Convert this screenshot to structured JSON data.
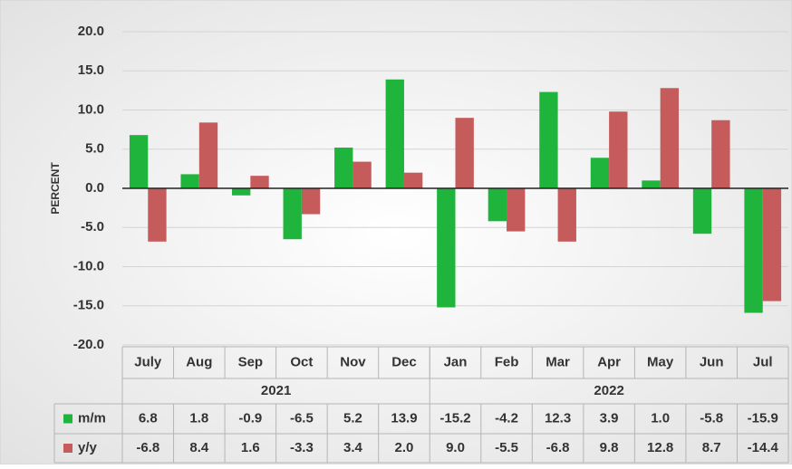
{
  "chart_data": {
    "type": "bar",
    "y_label": "PERCENT",
    "categories": [
      "July",
      "Aug",
      "Sep",
      "Oct",
      "Nov",
      "Dec",
      "Jan",
      "Feb",
      "Mar",
      "Apr",
      "May",
      "Jun",
      "Jul"
    ],
    "groups": [
      {
        "label": "2021",
        "size": 6
      },
      {
        "label": "2022",
        "size": 7
      }
    ],
    "series": [
      {
        "name": "m/m",
        "color": "#1fb53c",
        "values": [
          6.8,
          1.8,
          -0.9,
          -6.5,
          5.2,
          13.9,
          -15.2,
          -4.2,
          12.3,
          3.9,
          1.0,
          -5.8,
          -15.9
        ],
        "value_labels": [
          "6.8",
          "1.8",
          "-0.9",
          "-6.5",
          "5.2",
          "13.9",
          "-15.2",
          "-4.2",
          "12.3",
          "3.9",
          "1.0",
          "-5.8",
          "-15.9"
        ]
      },
      {
        "name": "y/y",
        "color": "#c65b5b",
        "values": [
          -6.8,
          8.4,
          1.6,
          -3.3,
          3.4,
          2.0,
          9.0,
          -5.5,
          -6.8,
          9.8,
          12.8,
          8.7,
          -14.4
        ],
        "value_labels": [
          "-6.8",
          "8.4",
          "1.6",
          "-3.3",
          "3.4",
          "2.0",
          "9.0",
          "-5.5",
          "-6.8",
          "9.8",
          "12.8",
          "8.7",
          "-14.4"
        ]
      }
    ],
    "ylim": [
      -20,
      20
    ],
    "yticks": [
      {
        "value": -20,
        "label": "-20.0"
      },
      {
        "value": -15,
        "label": "-15.0"
      },
      {
        "value": -10,
        "label": "-10.0"
      },
      {
        "value": -5,
        "label": "-5.0"
      },
      {
        "value": 0,
        "label": "0.0"
      },
      {
        "value": 5,
        "label": "5.0"
      },
      {
        "value": 10,
        "label": "10.0"
      },
      {
        "value": 15,
        "label": "15.0"
      },
      {
        "value": 20,
        "label": "20.0"
      }
    ],
    "grid": true
  }
}
